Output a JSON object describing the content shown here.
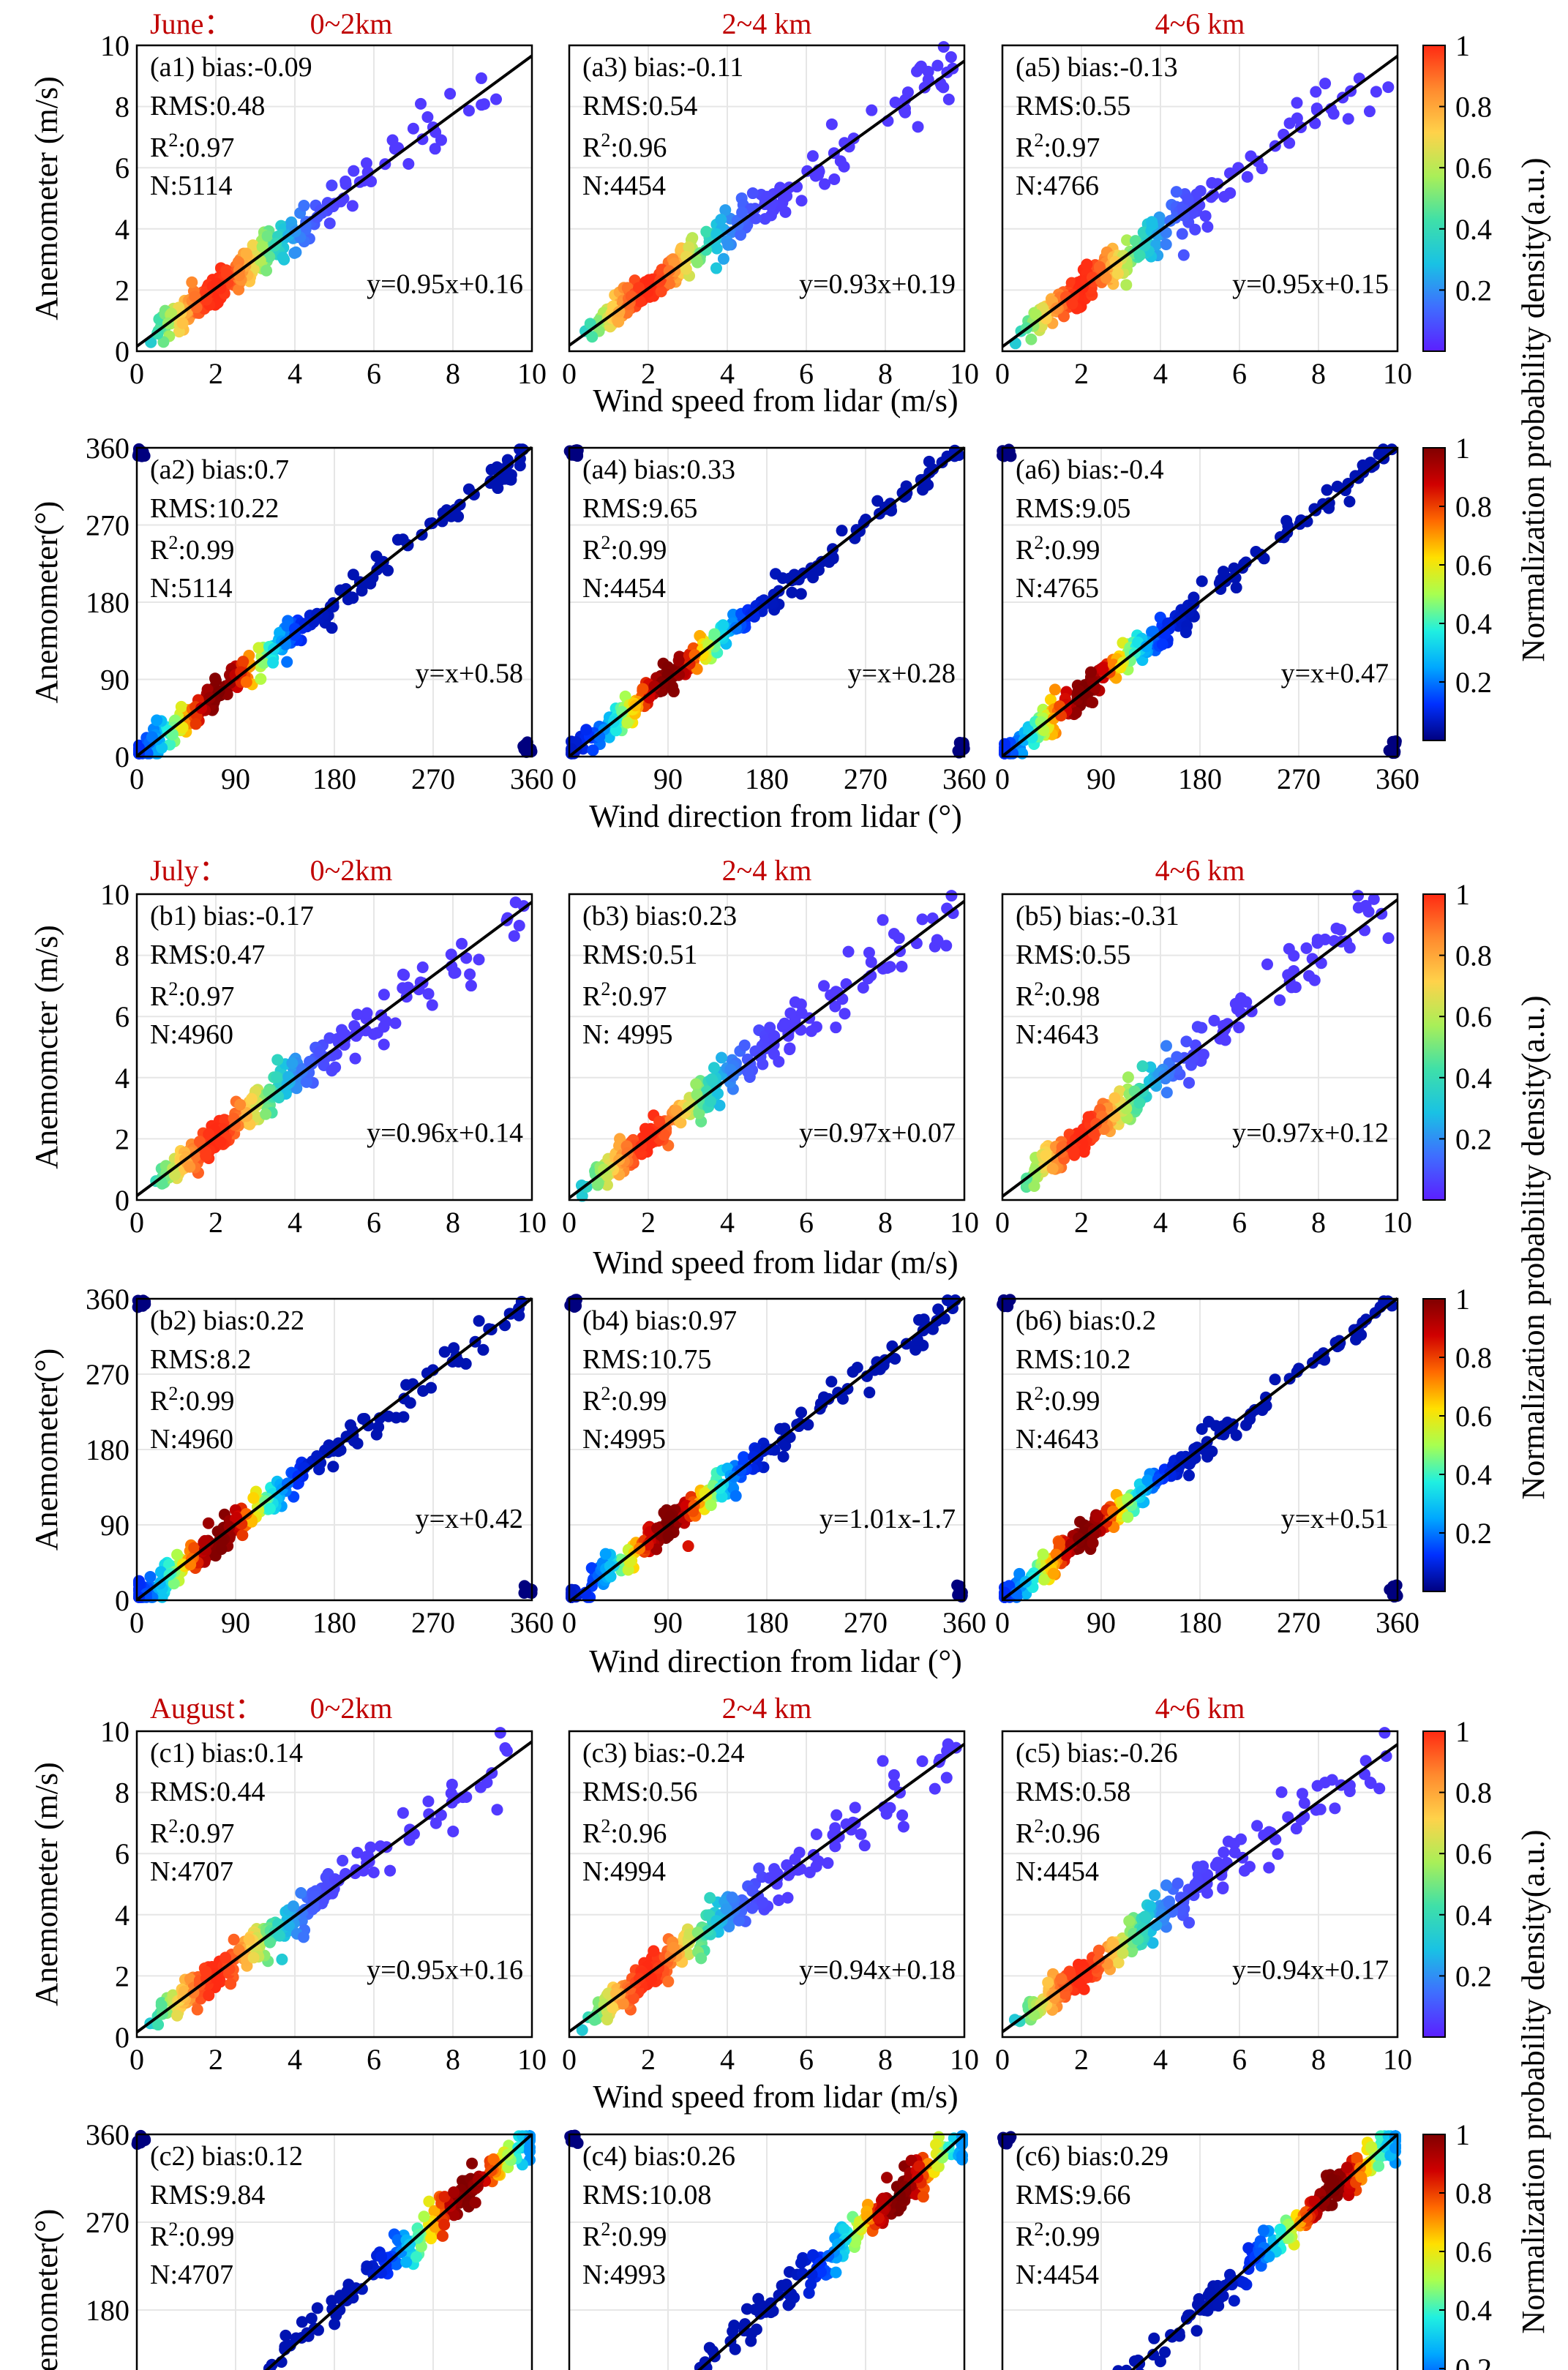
{
  "chart_data": {
    "type": "scatter",
    "months": [
      {
        "month": "June",
        "headings": [
          "0~2km",
          "2~4 km",
          "4~6  km"
        ],
        "speed": {
          "xlabel": "Wind speed from lidar (m/s)",
          "ylabel": "Anemometer (m/s)",
          "xlim": [
            0,
            10
          ],
          "ylim": [
            0,
            10
          ],
          "xticks": [
            "0",
            "2",
            "4",
            "6",
            "8",
            "10"
          ],
          "yticks": [
            "0",
            "2",
            "4",
            "6",
            "8",
            "10"
          ],
          "panels": [
            {
              "label": "(a1) bias:-0.09",
              "rms": "RMS:0.48",
              "r2": "0.97",
              "n": "N:5114",
              "equation": "y=0.95x+0.16",
              "slope": 0.95,
              "intercept": 0.16
            },
            {
              "label": "(a3) bias:-0.11",
              "rms": "RMS:0.54",
              "r2": "0.96",
              "n": "N:4454",
              "equation": "y=0.93x+0.19",
              "slope": 0.93,
              "intercept": 0.19
            },
            {
              "label": "(a5) bias:-0.13",
              "rms": "RMS:0.55",
              "r2": "0.97",
              "n": "N:4766",
              "equation": "y=0.95x+0.15",
              "slope": 0.95,
              "intercept": 0.15
            }
          ]
        },
        "direction": {
          "xlabel": "Wind direction from lidar (°)",
          "ylabel": "Anemometer(°)",
          "xlim": [
            0,
            360
          ],
          "ylim": [
            0,
            360
          ],
          "xticks": [
            "0",
            "90",
            "180",
            "270",
            "360"
          ],
          "yticks": [
            "0",
            "90",
            "180",
            "270",
            "360"
          ],
          "panels": [
            {
              "label": "(a2) bias:0.7",
              "rms": "RMS:10.22",
              "r2": "0.99",
              "n": "N:5114",
              "equation": "y=x+0.58",
              "slope": 1.0,
              "intercept": 0.58
            },
            {
              "label": "(a4) bias:0.33",
              "rms": "RMS:9.65",
              "r2": "0.99",
              "n": "N:4454",
              "equation": "y=x+0.28",
              "slope": 1.0,
              "intercept": 0.28
            },
            {
              "label": "(a6) bias:-0.4",
              "rms": "RMS:9.05",
              "r2": "0.99",
              "n": "N:4765",
              "equation": "y=x+0.47",
              "slope": 1.0,
              "intercept": 0.47
            }
          ]
        }
      },
      {
        "month": "July",
        "headings": [
          "0~2km",
          "2~4 km",
          "4~6  km"
        ],
        "speed": {
          "xlabel": "Wind speed from lidar (m/s)",
          "ylabel": "Anemomcter (m/s)",
          "xlim": [
            0,
            10
          ],
          "ylim": [
            0,
            10
          ],
          "xticks": [
            "0",
            "2",
            "4",
            "6",
            "8",
            "10"
          ],
          "yticks": [
            "0",
            "2",
            "4",
            "6",
            "8",
            "10"
          ],
          "panels": [
            {
              "label": "(b1) bias:-0.17",
              "rms": "RMS:0.47",
              "r2": "0.97",
              "n": "N:4960",
              "equation": "y=0.96x+0.14",
              "slope": 0.96,
              "intercept": 0.14
            },
            {
              "label": "(b3) bias:0.23",
              "rms": "RMS:0.51",
              "r2": "0.97",
              "n": "N: 4995",
              "equation": "y=0.97x+0.07",
              "slope": 0.97,
              "intercept": 0.07
            },
            {
              "label": "(b5) bias:-0.31",
              "rms": "RMS:0.55",
              "r2": "0.98",
              "n": "N:4643",
              "equation": "y=0.97x+0.12",
              "slope": 0.97,
              "intercept": 0.12
            }
          ]
        },
        "direction": {
          "xlabel": "Wind direction from lidar (°)",
          "ylabel": "Anemometer(°)",
          "xlim": [
            0,
            360
          ],
          "ylim": [
            0,
            360
          ],
          "xticks": [
            "0",
            "90",
            "180",
            "270",
            "360"
          ],
          "yticks": [
            "0",
            "90",
            "180",
            "270",
            "360"
          ],
          "panels": [
            {
              "label": "(b2) bias:0.22",
              "rms": "RMS:8.2",
              "r2": "0.99",
              "n": "N:4960",
              "equation": "y=x+0.42",
              "slope": 1.0,
              "intercept": 0.42
            },
            {
              "label": "(b4) bias:0.97",
              "rms": "RMS:10.75",
              "r2": "0.99",
              "n": "N:4995",
              "equation": "y=1.01x-1.7",
              "slope": 1.01,
              "intercept": -1.7
            },
            {
              "label": "(b6) bias:0.2",
              "rms": "RMS:10.2",
              "r2": "0.99",
              "n": "N:4643",
              "equation": "y=x+0.51",
              "slope": 1.0,
              "intercept": 0.51
            }
          ]
        }
      },
      {
        "month": "August",
        "headings": [
          "0~2km",
          "2~4 km",
          "4~6  km"
        ],
        "speed": {
          "xlabel": "Wind speed from lidar (m/s)",
          "ylabel": "Anemometer (m/s)",
          "xlim": [
            0,
            10
          ],
          "ylim": [
            0,
            10
          ],
          "xticks": [
            "0",
            "2",
            "4",
            "6",
            "8",
            "10"
          ],
          "yticks": [
            "0",
            "2",
            "4",
            "6",
            "8",
            "10"
          ],
          "panels": [
            {
              "label": "(c1) bias:0.14",
              "rms": "RMS:0.44",
              "r2": "0.97",
              "n": "N:4707",
              "equation": "y=0.95x+0.16",
              "slope": 0.95,
              "intercept": 0.16
            },
            {
              "label": "(c3) bias:-0.24",
              "rms": "RMS:0.56",
              "r2": "0.96",
              "n": "N:4994",
              "equation": "y=0.94x+0.18",
              "slope": 0.94,
              "intercept": 0.18
            },
            {
              "label": "(c5) bias:-0.26",
              "rms": "RMS:0.58",
              "r2": "0.96",
              "n": "N:4454",
              "equation": "y=0.94x+0.17",
              "slope": 0.94,
              "intercept": 0.17
            }
          ]
        },
        "direction": {
          "xlabel": "",
          "ylabel": "Anemometer(°)",
          "xlim": [
            0,
            360
          ],
          "ylim": [
            0,
            360
          ],
          "xticks": [],
          "yticks": [
            "180",
            "270",
            "360"
          ],
          "panels": [
            {
              "label": "(c2) bias:0.12",
              "rms": "RMS:9.84",
              "r2": "0.99",
              "n": "N:4707",
              "equation": "",
              "slope": 1.0,
              "intercept": 0.0
            },
            {
              "label": "(c4) bias:0.26",
              "rms": "RMS:10.08",
              "r2": "0.99",
              "n": "N:4993",
              "equation": "",
              "slope": 1.0,
              "intercept": 0.0
            },
            {
              "label": "(c6) bias:0.29",
              "rms": "RMS:9.66",
              "r2": "0.99",
              "n": "N:4454",
              "equation": "",
              "slope": 1.0,
              "intercept": 0.0
            }
          ]
        }
      }
    ],
    "colorbar": {
      "label": "Normalization probability density(a.u.)",
      "ticks": [
        "0.2",
        "0.4",
        "0.6",
        "0.8",
        "1"
      ],
      "range": [
        0,
        1
      ],
      "speed_colormap": [
        "#5b1fff",
        "#3f6dff",
        "#19c2e4",
        "#3fe0a8",
        "#a9ef58",
        "#ffd24a",
        "#ff8a2e",
        "#ff2a12"
      ],
      "direction_colormap": [
        "#00007f",
        "#0030ff",
        "#00a8ff",
        "#20f0e0",
        "#a8ff50",
        "#ffe000",
        "#ff6a00",
        "#d00000",
        "#800000"
      ]
    }
  }
}
